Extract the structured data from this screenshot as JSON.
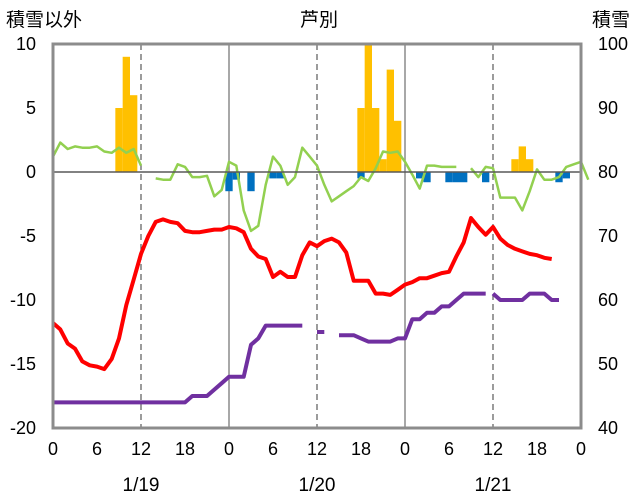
{
  "chart_data": {
    "type": "line",
    "title": "芦別",
    "left_axis_label": "積雪以外",
    "right_axis_label": "積雪",
    "ylim_left": [
      -20,
      10
    ],
    "ylim_right": [
      40,
      100
    ],
    "yticks_left": [
      "10",
      "5",
      "0",
      "-5",
      "-10",
      "-15",
      "-20"
    ],
    "yticks_right": [
      "100",
      "90",
      "80",
      "70",
      "60",
      "50",
      "40"
    ],
    "x_range_hours": [
      0,
      72
    ],
    "xtick_labels": [
      "0",
      "6",
      "12",
      "18",
      "0",
      "6",
      "12",
      "18",
      "0",
      "6",
      "12",
      "18",
      "0"
    ],
    "date_labels": [
      "1/19",
      "1/20",
      "1/21"
    ],
    "grid": "dashed vertical lines at 12h, solid day dividers",
    "series": [
      {
        "key": "precip",
        "type": "bar",
        "axis": "left",
        "color": "#FFC000",
        "points": [
          [
            9,
            5
          ],
          [
            10,
            9
          ],
          [
            11,
            6
          ],
          [
            42,
            5
          ],
          [
            43,
            10
          ],
          [
            44,
            5
          ],
          [
            45,
            1
          ],
          [
            46,
            8
          ],
          [
            47,
            4
          ],
          [
            63,
            1
          ],
          [
            64,
            2
          ],
          [
            65,
            1
          ]
        ]
      },
      {
        "key": "sunshine",
        "type": "bar",
        "axis": "left",
        "color": "#0070C0",
        "points": [
          [
            24,
            -1.5
          ],
          [
            25,
            -0.6
          ],
          [
            27,
            -1.5
          ],
          [
            30,
            -0.5
          ],
          [
            31,
            -0.5
          ],
          [
            42,
            -0.5
          ],
          [
            50,
            -0.5
          ],
          [
            51,
            -0.8
          ],
          [
            54,
            -0.8
          ],
          [
            55,
            -0.8
          ],
          [
            56,
            -0.8
          ],
          [
            59,
            -0.8
          ],
          [
            69,
            -0.8
          ],
          [
            70,
            -0.5
          ]
        ]
      },
      {
        "key": "wind",
        "type": "line",
        "axis": "left",
        "color": "#92D050",
        "segments": [
          [
            [
              0,
              1.2
            ],
            [
              1,
              2.3
            ],
            [
              2,
              1.8
            ],
            [
              3,
              2.0
            ],
            [
              4,
              1.9
            ],
            [
              5,
              1.9
            ],
            [
              6,
              2.0
            ],
            [
              7,
              1.6
            ],
            [
              8,
              1.5
            ],
            [
              9,
              1.9
            ],
            [
              10,
              1.5
            ],
            [
              11,
              1.8
            ],
            [
              12,
              0.5
            ]
          ],
          [
            [
              14,
              -0.5
            ],
            [
              15,
              -0.6
            ],
            [
              16,
              -0.6
            ],
            [
              17,
              0.6
            ],
            [
              18,
              0.4
            ],
            [
              19,
              -0.4
            ],
            [
              20,
              -0.4
            ],
            [
              21,
              -0.3
            ],
            [
              22,
              -1.9
            ],
            [
              23,
              -1.4
            ],
            [
              24,
              0.8
            ],
            [
              25,
              0.5
            ],
            [
              26,
              -3.0
            ],
            [
              27,
              -4.6
            ],
            [
              28,
              -4.2
            ],
            [
              29,
              -1.0
            ],
            [
              30,
              1.2
            ],
            [
              31,
              0.5
            ],
            [
              32,
              -1.0
            ],
            [
              33,
              -0.4
            ],
            [
              34,
              1.9
            ],
            [
              35,
              1.2
            ],
            [
              36,
              0.5
            ],
            [
              37,
              -1.0
            ],
            [
              38,
              -2.3
            ],
            [
              39,
              -1.9
            ],
            [
              40,
              -1.5
            ],
            [
              41,
              -1.1
            ],
            [
              42,
              -0.4
            ],
            [
              43,
              -0.7
            ],
            [
              44,
              0.3
            ],
            [
              45,
              1.6
            ],
            [
              46,
              1.5
            ],
            [
              47,
              1.6
            ],
            [
              48,
              0.8
            ],
            [
              49,
              -0.2
            ],
            [
              50,
              -1.3
            ],
            [
              51,
              0.5
            ],
            [
              52,
              0.5
            ],
            [
              53,
              0.4
            ],
            [
              54,
              0.4
            ],
            [
              55,
              0.4
            ]
          ],
          [
            [
              57,
              0.3
            ],
            [
              58,
              -0.4
            ],
            [
              59,
              0.4
            ],
            [
              60,
              0.3
            ],
            [
              61,
              -2.0
            ],
            [
              62,
              -2.0
            ],
            [
              63,
              -2.0
            ],
            [
              64,
              -3.0
            ],
            [
              65,
              -1.5
            ],
            [
              66,
              0.2
            ],
            [
              67,
              -0.6
            ],
            [
              68,
              -0.6
            ],
            [
              69,
              -0.4
            ],
            [
              70,
              0.4
            ],
            [
              71,
              0.6
            ],
            [
              72,
              0.8
            ],
            [
              73,
              -0.6
            ]
          ]
        ]
      },
      {
        "key": "temp",
        "type": "line",
        "axis": "left",
        "color": "#FF0000",
        "segments": [
          [
            [
              0,
              -11.8
            ],
            [
              1,
              -12.3
            ],
            [
              2,
              -13.4
            ],
            [
              3,
              -13.8
            ],
            [
              4,
              -14.8
            ],
            [
              5,
              -15.1
            ],
            [
              6,
              -15.2
            ],
            [
              7,
              -15.4
            ],
            [
              8,
              -14.6
            ],
            [
              9,
              -13.0
            ],
            [
              10,
              -10.4
            ],
            [
              11,
              -8.4
            ],
            [
              12,
              -6.4
            ],
            [
              13,
              -5.0
            ],
            [
              14,
              -3.9
            ],
            [
              15,
              -3.7
            ],
            [
              16,
              -3.9
            ],
            [
              17,
              -4.0
            ],
            [
              18,
              -4.6
            ],
            [
              19,
              -4.7
            ],
            [
              20,
              -4.7
            ],
            [
              21,
              -4.6
            ],
            [
              22,
              -4.5
            ],
            [
              23,
              -4.5
            ],
            [
              24,
              -4.3
            ],
            [
              25,
              -4.4
            ],
            [
              26,
              -4.7
            ],
            [
              27,
              -6.0
            ],
            [
              28,
              -6.6
            ],
            [
              29,
              -6.8
            ],
            [
              30,
              -8.2
            ],
            [
              31,
              -7.8
            ],
            [
              32,
              -8.2
            ],
            [
              33,
              -8.2
            ],
            [
              34,
              -6.5
            ],
            [
              35,
              -5.5
            ],
            [
              36,
              -5.8
            ],
            [
              37,
              -5.4
            ],
            [
              38,
              -5.2
            ],
            [
              39,
              -5.5
            ],
            [
              40,
              -6.3
            ],
            [
              41,
              -8.5
            ],
            [
              42,
              -8.5
            ],
            [
              43,
              -8.5
            ],
            [
              44,
              -9.5
            ],
            [
              45,
              -9.5
            ],
            [
              46,
              -9.6
            ],
            [
              47,
              -9.2
            ],
            [
              48,
              -8.8
            ],
            [
              49,
              -8.6
            ],
            [
              50,
              -8.3
            ],
            [
              51,
              -8.3
            ],
            [
              52,
              -8.1
            ],
            [
              53,
              -7.9
            ],
            [
              54,
              -7.8
            ],
            [
              55,
              -6.6
            ],
            [
              56,
              -5.5
            ],
            [
              57,
              -3.6
            ],
            [
              58,
              -4.3
            ],
            [
              59,
              -4.9
            ],
            [
              60,
              -4.3
            ],
            [
              61,
              -5.2
            ],
            [
              62,
              -5.7
            ],
            [
              63,
              -6.0
            ],
            [
              64,
              -6.2
            ],
            [
              65,
              -6.4
            ],
            [
              66,
              -6.5
            ],
            [
              67,
              -6.7
            ],
            [
              68,
              -6.8
            ]
          ]
        ]
      },
      {
        "key": "snow",
        "type": "line",
        "axis": "right",
        "color": "#7030A0",
        "segments": [
          [
            [
              0,
              44
            ],
            [
              1,
              44
            ],
            [
              2,
              44
            ],
            [
              3,
              44
            ],
            [
              4,
              44
            ],
            [
              5,
              44
            ],
            [
              6,
              44
            ],
            [
              7,
              44
            ],
            [
              8,
              44
            ],
            [
              9,
              44
            ],
            [
              10,
              44
            ],
            [
              11,
              44
            ],
            [
              12,
              44
            ],
            [
              13,
              44
            ],
            [
              14,
              44
            ],
            [
              15,
              44
            ],
            [
              16,
              44
            ],
            [
              17,
              44
            ],
            [
              18,
              44
            ],
            [
              19,
              45
            ],
            [
              20,
              45
            ],
            [
              21,
              45
            ],
            [
              22,
              46
            ],
            [
              23,
              47
            ],
            [
              24,
              48
            ],
            [
              25,
              48
            ],
            [
              26,
              48
            ],
            [
              27,
              53
            ],
            [
              28,
              54
            ],
            [
              29,
              56
            ],
            [
              30,
              56
            ],
            [
              31,
              56
            ],
            [
              32,
              56
            ],
            [
              33,
              56
            ],
            [
              34,
              56
            ]
          ],
          [
            [
              36,
              55
            ],
            [
              37,
              55
            ]
          ],
          [
            [
              39,
              54.5
            ],
            [
              40,
              54.5
            ],
            [
              41,
              54.5
            ],
            [
              42,
              54
            ],
            [
              43,
              53.5
            ],
            [
              44,
              53.5
            ],
            [
              45,
              53.5
            ],
            [
              46,
              53.5
            ],
            [
              47,
              54
            ],
            [
              48,
              54
            ],
            [
              49,
              57
            ],
            [
              50,
              57
            ],
            [
              51,
              58
            ],
            [
              52,
              58
            ],
            [
              53,
              59
            ],
            [
              54,
              59
            ],
            [
              55,
              60
            ],
            [
              56,
              61
            ],
            [
              57,
              61
            ],
            [
              58,
              61
            ],
            [
              59,
              61
            ]
          ],
          [
            [
              60,
              61
            ],
            [
              61,
              60
            ],
            [
              62,
              60
            ],
            [
              63,
              60
            ],
            [
              64,
              60
            ],
            [
              65,
              61
            ],
            [
              66,
              61
            ],
            [
              67,
              61
            ],
            [
              68,
              60
            ],
            [
              69,
              60
            ]
          ]
        ]
      }
    ]
  }
}
